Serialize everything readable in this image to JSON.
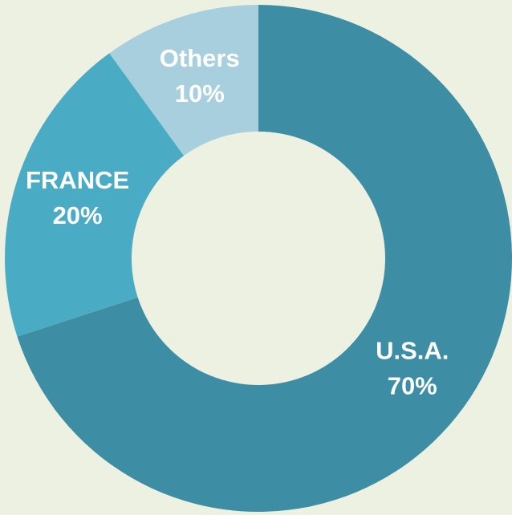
{
  "chart_data": {
    "type": "donut",
    "categories": [
      "U.S.A.",
      "FRANCE",
      "Others"
    ],
    "values": [
      70,
      20,
      10
    ],
    "value_labels": [
      "70%",
      "20%",
      "10%"
    ],
    "colors": [
      "#3d8da5",
      "#4aabc5",
      "#a8cfdd"
    ]
  }
}
